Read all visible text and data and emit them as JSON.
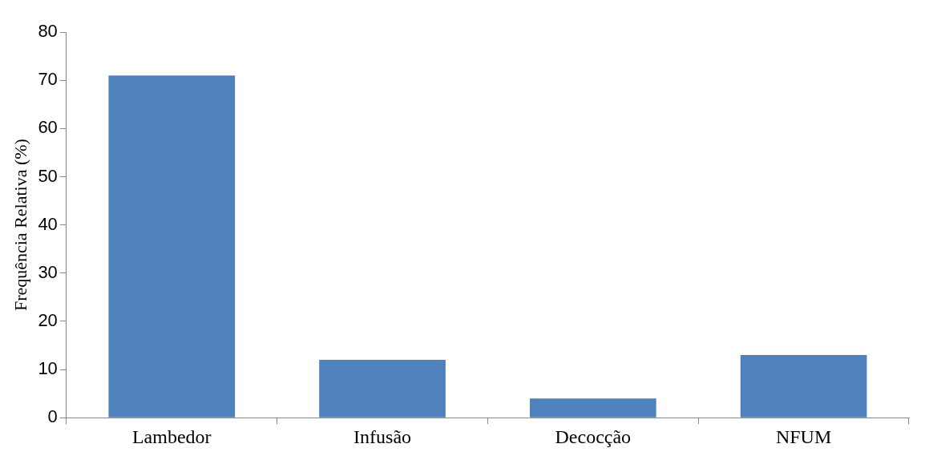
{
  "chart_data": {
    "type": "bar",
    "ylabel": "Frequência Relativa (%)",
    "categories": [
      "Lambedor",
      "Infusão",
      "Decocção",
      "NFUM"
    ],
    "values": [
      71,
      12,
      4,
      13
    ],
    "color": "#4f81bd",
    "ylim": [
      0,
      80
    ],
    "yticks": [
      0,
      10,
      20,
      30,
      40,
      50,
      60,
      70,
      80
    ],
    "grid": false
  }
}
